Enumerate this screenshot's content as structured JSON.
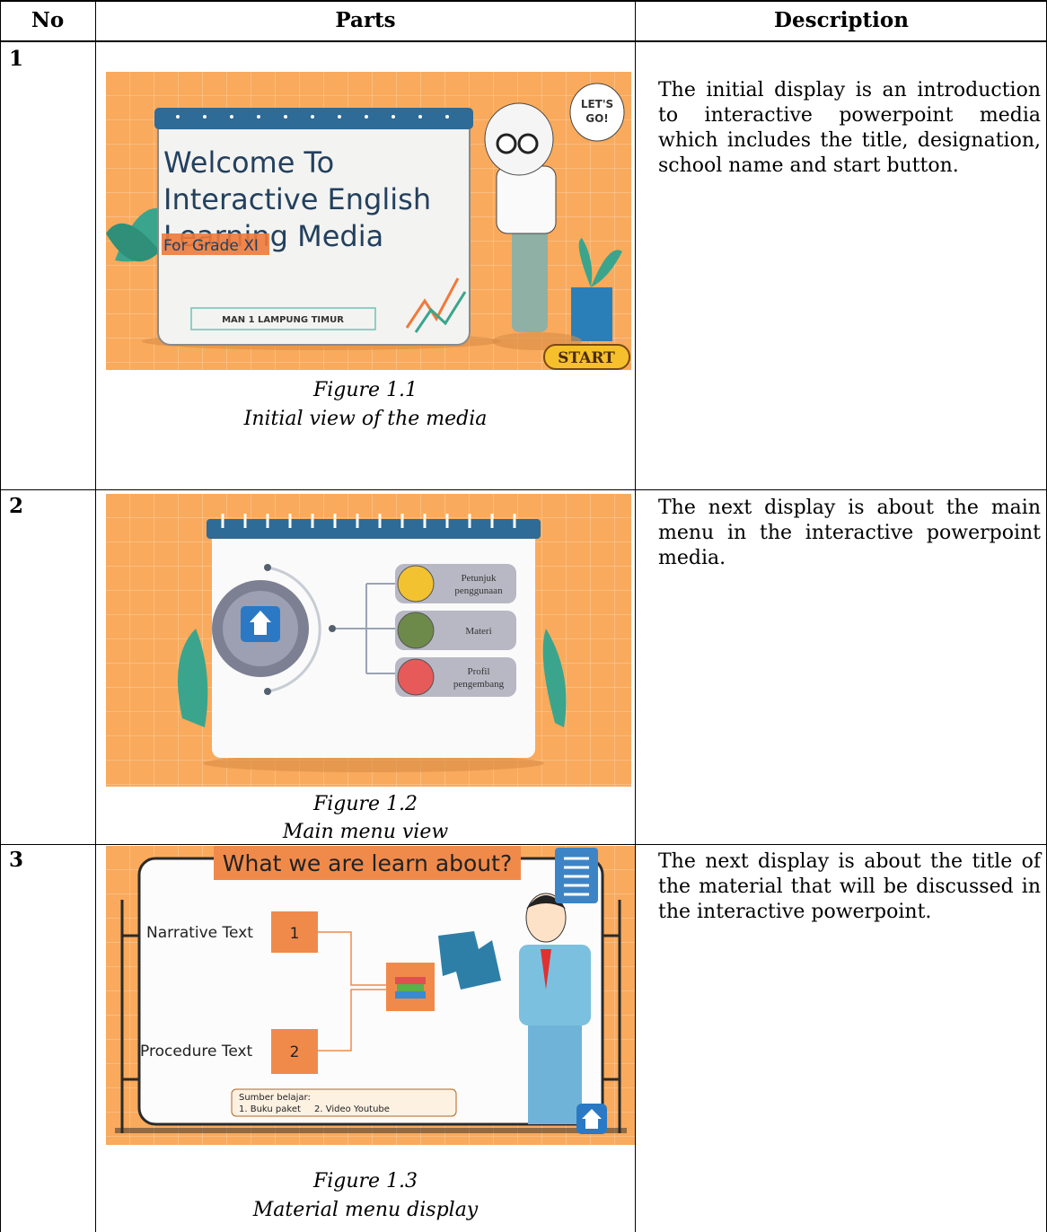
{
  "header": {
    "no": "No",
    "parts": "Parts",
    "description": "Description"
  },
  "rows": [
    {
      "no": "1",
      "figure": "Figure 1.1",
      "caption": "Initial view of the media",
      "description": "The initial display is an introduction to interactive powerpoint media which includes the title, designation, school name and start button.",
      "slide": {
        "title_lines": [
          "Welcome To",
          "Interactive English",
          "Learning Media"
        ],
        "subtitle": "For Grade XI",
        "school": "MAN 1 LAMPUNG TIMUR",
        "bubble_lines": [
          "LET'S",
          "GO!"
        ],
        "button": "START"
      }
    },
    {
      "no": "2",
      "figure": "Figure 1.2",
      "caption": "Main menu view",
      "description": "The next display is about the main menu in the interactive powerpoint media.",
      "slide": {
        "menu": [
          [
            "Petunjuk",
            "penggunaan"
          ],
          [
            "Materi"
          ],
          [
            "Profil",
            "pengembang"
          ]
        ]
      }
    },
    {
      "no": "3",
      "figure": "Figure 1.3",
      "caption": "Material menu display",
      "description": "The next display is about the title of the material that will be discussed in the interactive powerpoint.",
      "slide": {
        "title": "What we are learn about?",
        "items": [
          {
            "label": "Narrative Text",
            "number": "1"
          },
          {
            "label": "Procedure Text",
            "number": "2"
          }
        ],
        "source_title": "Sumber belajar:",
        "sources": [
          "1.   Buku paket",
          "2. Video Youtube"
        ]
      }
    }
  ]
}
